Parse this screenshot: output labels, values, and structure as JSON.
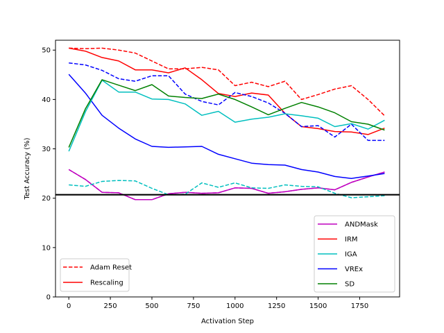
{
  "chart_data": {
    "type": "line",
    "xlabel": "Activation Step",
    "ylabel": "Test Accuracy (%)",
    "xlim": [
      -80,
      1990
    ],
    "ylim": [
      0,
      52
    ],
    "x_ticks": [
      0,
      250,
      500,
      750,
      1000,
      1250,
      1500,
      1750
    ],
    "y_ticks": [
      0,
      10,
      20,
      30,
      40,
      50
    ],
    "x_tick_labels": [
      "0",
      "250",
      "500",
      "750",
      "1000",
      "1250",
      "1500",
      "1750"
    ],
    "y_tick_labels": [
      "0",
      "10",
      "20",
      "30",
      "40",
      "50"
    ],
    "grid": false,
    "reference_line": {
      "y": 20.7,
      "color": "#000000"
    },
    "x": [
      0,
      100,
      200,
      300,
      400,
      500,
      600,
      700,
      800,
      900,
      1000,
      1100,
      1200,
      1300,
      1400,
      1500,
      1600,
      1700,
      1800,
      1900
    ],
    "series": [
      {
        "method": "ANDMask",
        "variant": "Adam Reset",
        "color": "#bf00bf",
        "values": [
          25.8,
          23.8,
          21.2,
          21.1,
          19.7,
          19.7,
          20.9,
          21.2,
          21.0,
          21.1,
          22.1,
          22.0,
          21.0,
          21.3,
          21.8,
          22.1,
          21.7,
          23.2,
          24.3,
          25.3
        ]
      },
      {
        "method": "ANDMask",
        "variant": "Rescaling",
        "color": "#bf00bf",
        "values": [
          25.8,
          23.8,
          21.2,
          21.1,
          19.7,
          19.7,
          20.9,
          21.2,
          21.0,
          21.1,
          22.1,
          22.0,
          21.0,
          21.3,
          21.8,
          22.1,
          21.7,
          23.2,
          24.3,
          25.3
        ]
      },
      {
        "method": "IGA",
        "variant": "Adam Reset",
        "color": "#00bfbf",
        "values": [
          22.7,
          22.4,
          23.4,
          23.6,
          23.5,
          22.0,
          20.7,
          20.8,
          23.1,
          22.2,
          23.1,
          22.1,
          22.0,
          22.7,
          22.4,
          22.3,
          21.0,
          20.1,
          20.3,
          20.5
        ]
      },
      {
        "method": "IRM",
        "variant": "Adam Reset",
        "color": "#ff0000",
        "values": [
          50.4,
          50.3,
          50.4,
          50.0,
          49.4,
          47.8,
          46.2,
          46.2,
          46.5,
          46.0,
          42.8,
          43.5,
          42.6,
          43.7,
          40.0,
          41.0,
          42.1,
          42.8,
          40.0,
          36.7
        ]
      },
      {
        "method": "IRM",
        "variant": "Rescaling",
        "color": "#ff0000",
        "values": [
          50.4,
          49.8,
          48.5,
          47.8,
          46.0,
          46.0,
          45.4,
          46.4,
          44.0,
          41.2,
          40.6,
          41.3,
          40.9,
          37.2,
          34.5,
          34.1,
          33.5,
          33.4,
          32.9,
          34.2
        ]
      },
      {
        "method": "VREx",
        "variant": "Adam Reset",
        "color": "#0000ff",
        "values": [
          47.4,
          47.0,
          45.9,
          44.2,
          43.7,
          44.8,
          44.8,
          41.1,
          39.6,
          38.9,
          41.4,
          40.6,
          39.3,
          37.2,
          34.5,
          34.7,
          32.4,
          35.0,
          31.7,
          31.7
        ]
      },
      {
        "method": "VREx",
        "variant": "Rescaling",
        "color": "#0000ff",
        "values": [
          45.1,
          41.3,
          36.8,
          34.2,
          32.0,
          30.5,
          30.3,
          30.4,
          30.5,
          28.9,
          28.0,
          27.1,
          26.8,
          26.7,
          25.8,
          25.3,
          24.4,
          24.0,
          24.5,
          25.0
        ]
      },
      {
        "method": "IGA",
        "variant": "Rescaling",
        "color": "#00bfbf",
        "values": [
          29.5,
          37.5,
          43.9,
          41.5,
          41.5,
          40.1,
          40.0,
          39.1,
          36.8,
          37.6,
          35.4,
          36.0,
          36.4,
          37.1,
          36.7,
          36.2,
          34.5,
          35.1,
          34.0,
          35.8
        ]
      },
      {
        "method": "SD",
        "variant": "Rescaling",
        "color": "#008000",
        "values": [
          30.3,
          38.1,
          44.0,
          42.9,
          41.8,
          43.0,
          40.7,
          40.4,
          40.2,
          41.1,
          40.0,
          38.5,
          36.9,
          38.2,
          39.4,
          38.5,
          37.3,
          35.5,
          35.0,
          33.8
        ]
      }
    ],
    "legend_methods": {
      "placement": "lower right",
      "items": [
        {
          "label": "ANDMask",
          "color": "#bf00bf"
        },
        {
          "label": "IRM",
          "color": "#ff0000"
        },
        {
          "label": "IGA",
          "color": "#00bfbf"
        },
        {
          "label": "VREx",
          "color": "#0000ff"
        },
        {
          "label": "SD",
          "color": "#008000"
        }
      ]
    },
    "legend_variants": {
      "placement": "lower left",
      "items": [
        {
          "label": "Adam Reset",
          "dash": "dashed",
          "color": "#ff0000"
        },
        {
          "label": "Rescaling",
          "dash": "solid",
          "color": "#ff0000"
        }
      ]
    }
  }
}
